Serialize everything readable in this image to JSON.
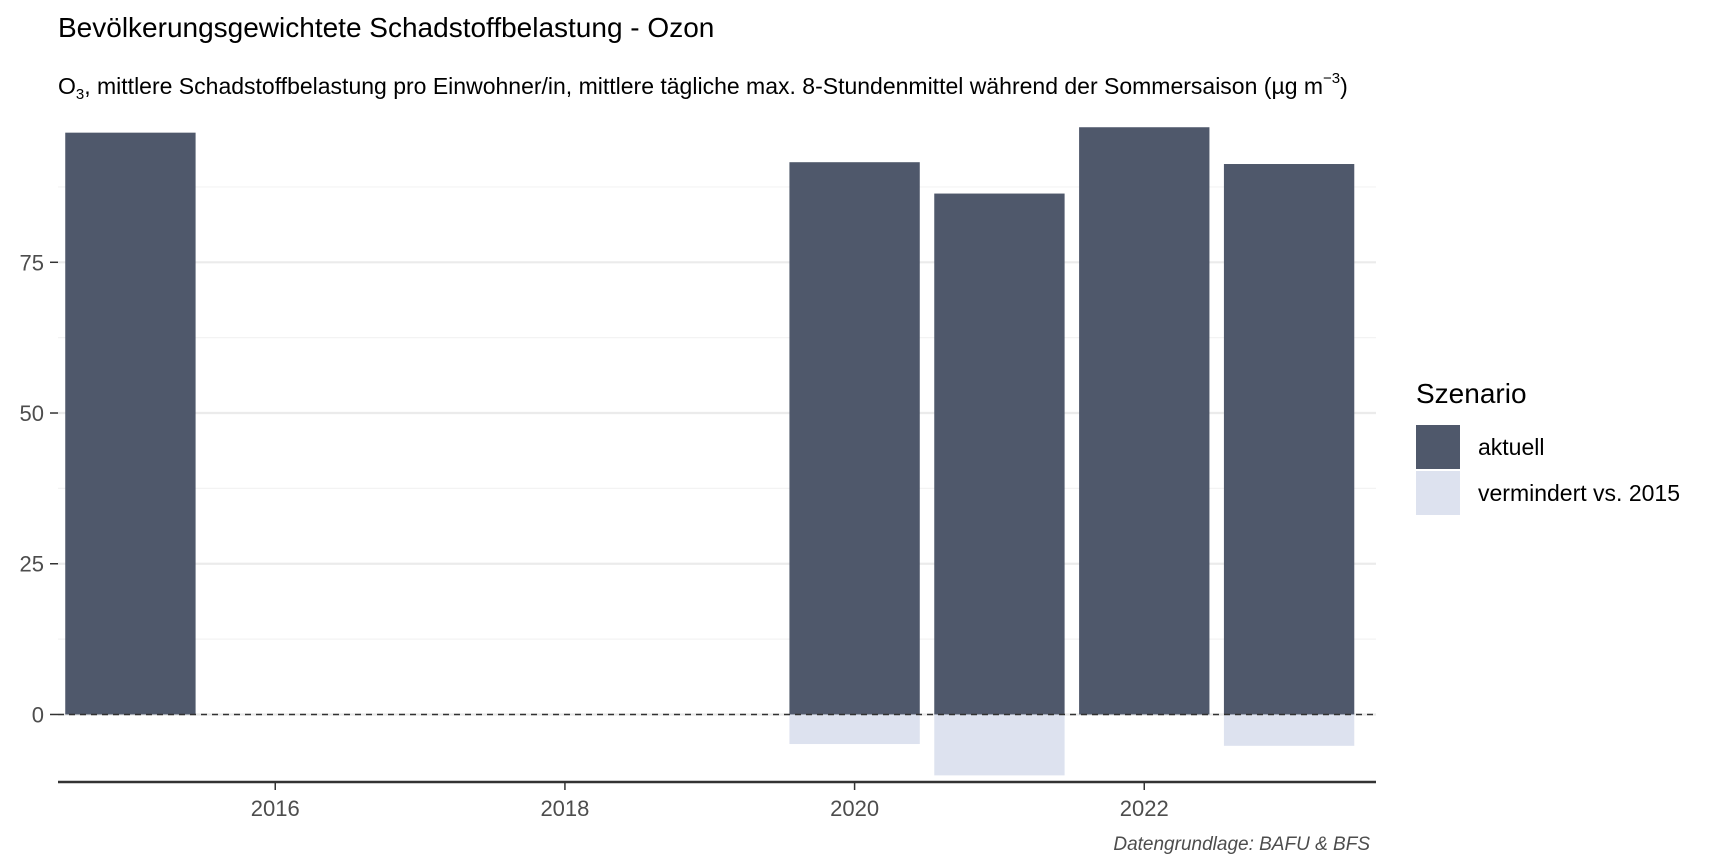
{
  "title": "Bevölkerungsgewichtete Schadstoffbelastung - Ozon",
  "subtitle": {
    "prefix": "O",
    "sub": "3",
    "main": ", mittlere Schadstoffbelastung pro Einwohner/in, mittlere tägliche max. 8-Stundenmittel während der Sommersaison (µg m",
    "sup": "−3",
    "suffix": ")"
  },
  "caption": "Datengrundlage: BAFU & BFS",
  "legend": {
    "title": "Szenario",
    "items": [
      {
        "label": "aktuell",
        "color": "#4f586b"
      },
      {
        "label": "vermindert vs. 2015",
        "color": "#dde2ef"
      }
    ]
  },
  "chart_data": {
    "type": "bar",
    "x": [
      2015,
      2020,
      2021,
      2022,
      2023
    ],
    "series": [
      {
        "name": "aktuell",
        "color": "#4f586b",
        "values": [
          96.5,
          91.6,
          86.4,
          97.4,
          91.3
        ]
      },
      {
        "name": "vermindert vs. 2015",
        "color": "#dde2ef",
        "values": [
          null,
          -4.9,
          -10.1,
          null,
          -5.2
        ]
      }
    ],
    "x_ticks": [
      2016,
      2018,
      2020,
      2022
    ],
    "y_ticks": [
      0,
      25,
      50,
      75
    ],
    "xlim": [
      2014.5,
      2023.6
    ],
    "ylim": [
      -11.2,
      98.6
    ],
    "reference_line": {
      "y": 0,
      "style": "dashed"
    },
    "grid": true,
    "legend_position": "right"
  }
}
